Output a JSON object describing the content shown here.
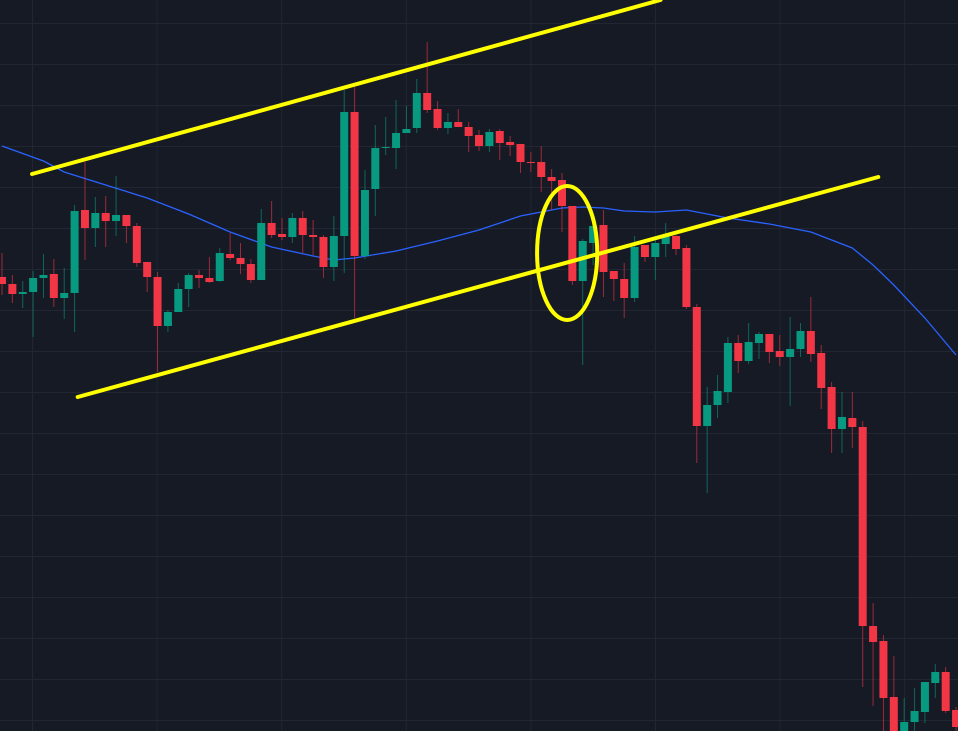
{
  "chart_data": {
    "type": "candlestick",
    "title": "",
    "xlabel": "",
    "ylabel": "",
    "ylim": [
      6.9,
      80.0
    ],
    "grid": true,
    "legend": "none",
    "colors": {
      "background": "#161a25",
      "grid": "#222633",
      "up": "#089981",
      "down": "#f23645",
      "moving_average": "#2962ff",
      "annotation": "#ffff00"
    },
    "candles_ohlc": [
      [
        52.3,
        54.7,
        50.5,
        51.6
      ],
      [
        51.6,
        52.5,
        49.7,
        50.6
      ],
      [
        50.6,
        51.9,
        49.2,
        50.8
      ],
      [
        50.8,
        52.9,
        46.3,
        52.2
      ],
      [
        52.2,
        54.6,
        50.2,
        52.5
      ],
      [
        52.6,
        54.1,
        49.3,
        50.2
      ],
      [
        50.2,
        53.2,
        48.1,
        50.7
      ],
      [
        50.7,
        59.5,
        46.8,
        58.9
      ],
      [
        59.0,
        63.8,
        54.0,
        57.2
      ],
      [
        57.2,
        60.3,
        55.3,
        58.7
      ],
      [
        58.7,
        60.4,
        55.3,
        57.9
      ],
      [
        57.9,
        62.4,
        56.4,
        58.5
      ],
      [
        58.5,
        58.5,
        55.7,
        57.4
      ],
      [
        57.4,
        57.7,
        53.3,
        53.7
      ],
      [
        53.8,
        53.8,
        50.8,
        52.3
      ],
      [
        52.3,
        52.8,
        42.8,
        47.4
      ],
      [
        47.4,
        49.0,
        46.8,
        48.8
      ],
      [
        48.8,
        51.7,
        48.8,
        51.1
      ],
      [
        51.1,
        52.7,
        49.3,
        52.5
      ],
      [
        52.5,
        53.0,
        51.2,
        52.2
      ],
      [
        52.2,
        54.3,
        51.7,
        51.8
      ],
      [
        51.9,
        55.2,
        51.8,
        54.7
      ],
      [
        54.6,
        56.7,
        54.0,
        54.2
      ],
      [
        54.2,
        55.7,
        52.6,
        53.6
      ],
      [
        53.6,
        54.1,
        51.7,
        52.0
      ],
      [
        52.0,
        59.1,
        52.0,
        57.7
      ],
      [
        57.7,
        59.9,
        56.2,
        56.5
      ],
      [
        56.6,
        58.2,
        56.0,
        56.3
      ],
      [
        56.3,
        58.7,
        55.7,
        58.2
      ],
      [
        58.2,
        58.9,
        54.7,
        56.5
      ],
      [
        56.5,
        58.0,
        54.5,
        56.3
      ],
      [
        56.3,
        56.5,
        52.2,
        53.3
      ],
      [
        53.3,
        58.4,
        51.9,
        56.4
      ],
      [
        56.4,
        71.0,
        52.7,
        68.8
      ],
      [
        68.8,
        71.3,
        48.2,
        54.4
      ],
      [
        54.4,
        63.0,
        54.1,
        61.0
      ],
      [
        61.1,
        67.5,
        58.4,
        65.2
      ],
      [
        65.2,
        68.3,
        64.5,
        65.3
      ],
      [
        65.2,
        70.0,
        63.1,
        66.7
      ],
      [
        66.7,
        69.4,
        66.7,
        67.1
      ],
      [
        67.2,
        72.1,
        66.7,
        70.7
      ],
      [
        70.7,
        75.8,
        68.7,
        69.0
      ],
      [
        69.1,
        69.9,
        67.0,
        67.2
      ],
      [
        67.2,
        68.7,
        66.6,
        67.8
      ],
      [
        67.8,
        69.1,
        67.3,
        67.3
      ],
      [
        67.3,
        67.8,
        64.8,
        66.4
      ],
      [
        66.5,
        67.0,
        64.9,
        65.4
      ],
      [
        65.4,
        67.1,
        64.8,
        66.8
      ],
      [
        66.9,
        67.1,
        64.0,
        65.7
      ],
      [
        65.8,
        66.4,
        64.4,
        65.5
      ],
      [
        65.6,
        65.6,
        62.7,
        63.8
      ],
      [
        63.8,
        64.8,
        62.8,
        63.7
      ],
      [
        63.8,
        65.4,
        60.8,
        62.3
      ],
      [
        62.3,
        63.1,
        59.0,
        61.9
      ],
      [
        62.0,
        62.7,
        56.8,
        59.4
      ],
      [
        59.4,
        59.4,
        51.5,
        51.9
      ],
      [
        51.9,
        56.1,
        43.5,
        55.9
      ],
      [
        55.7,
        57.4,
        53.5,
        57.4
      ],
      [
        57.5,
        59.0,
        50.3,
        52.8
      ],
      [
        52.9,
        52.9,
        49.9,
        52.1
      ],
      [
        52.1,
        53.7,
        48.2,
        50.2
      ],
      [
        50.2,
        56.4,
        49.8,
        55.3
      ],
      [
        55.5,
        55.5,
        53.8,
        54.3
      ],
      [
        54.3,
        56.2,
        52.0,
        55.7
      ],
      [
        55.6,
        57.7,
        54.3,
        56.4
      ],
      [
        56.4,
        56.5,
        54.5,
        55.1
      ],
      [
        55.2,
        55.5,
        49.1,
        49.3
      ],
      [
        49.3,
        49.6,
        33.7,
        37.4
      ],
      [
        37.4,
        41.3,
        30.7,
        39.5
      ],
      [
        39.5,
        42.5,
        38.2,
        40.9
      ],
      [
        40.8,
        46.3,
        39.7,
        45.7
      ],
      [
        45.7,
        46.5,
        42.7,
        43.9
      ],
      [
        43.9,
        47.7,
        43.6,
        45.8
      ],
      [
        45.7,
        46.8,
        44.1,
        46.6
      ],
      [
        46.6,
        46.6,
        43.7,
        44.8
      ],
      [
        44.9,
        46.5,
        43.4,
        44.3
      ],
      [
        44.3,
        48.3,
        39.4,
        45.1
      ],
      [
        45.1,
        47.7,
        44.3,
        46.9
      ],
      [
        46.9,
        50.3,
        43.8,
        44.6
      ],
      [
        44.7,
        45.5,
        39.1,
        41.2
      ],
      [
        41.3,
        41.8,
        34.7,
        37.1
      ],
      [
        37.1,
        40.8,
        34.7,
        38.3
      ],
      [
        38.2,
        40.8,
        35.2,
        37.3
      ],
      [
        37.3,
        37.9,
        11.3,
        17.4
      ],
      [
        17.4,
        19.7,
        9.4,
        15.8
      ],
      [
        15.9,
        16.5,
        6.0,
        10.2
      ],
      [
        10.3,
        14.4,
        5.0,
        5.5
      ],
      [
        5.5,
        10.2,
        5.0,
        7.8
      ],
      [
        7.8,
        11.2,
        6.5,
        8.9
      ],
      [
        8.8,
        11.8,
        7.7,
        11.8
      ],
      [
        11.7,
        13.6,
        10.2,
        12.8
      ],
      [
        12.8,
        13.3,
        8.7,
        8.9
      ],
      [
        9.0,
        9.3,
        6.5,
        7.3
      ]
    ],
    "moving_average": [
      [
        0,
        65.4
      ],
      [
        4,
        63.9
      ],
      [
        6,
        62.8
      ],
      [
        10,
        61.5
      ],
      [
        14,
        60.2
      ],
      [
        18,
        58.6
      ],
      [
        22,
        56.8
      ],
      [
        26,
        55.3
      ],
      [
        30,
        54.4
      ],
      [
        32,
        54.0
      ],
      [
        34,
        54.2
      ],
      [
        38,
        54.9
      ],
      [
        42,
        55.9
      ],
      [
        46,
        57.0
      ],
      [
        50,
        58.4
      ],
      [
        54,
        59.2
      ],
      [
        56,
        59.3
      ],
      [
        58,
        59.2
      ],
      [
        60,
        58.9
      ],
      [
        63,
        58.8
      ],
      [
        66,
        59.0
      ],
      [
        70,
        58.2
      ],
      [
        74,
        57.6
      ],
      [
        78,
        56.8
      ],
      [
        82,
        55.2
      ],
      [
        84,
        53.5
      ],
      [
        86,
        51.5
      ],
      [
        89,
        48.2
      ],
      [
        92,
        44.5
      ]
    ],
    "annotations": {
      "channel_upper_line": {
        "from": [
          2.9,
          62.6
        ],
        "to": [
          63.5,
          80.0
        ]
      },
      "channel_lower_line": {
        "from": [
          7.3,
          40.3
        ],
        "to": [
          84.5,
          62.3
        ]
      },
      "ellipse_highlight": {
        "center": [
          54.5,
          54.7
        ],
        "half_width_candles": 2.9,
        "half_height_price": 6.7
      }
    }
  }
}
